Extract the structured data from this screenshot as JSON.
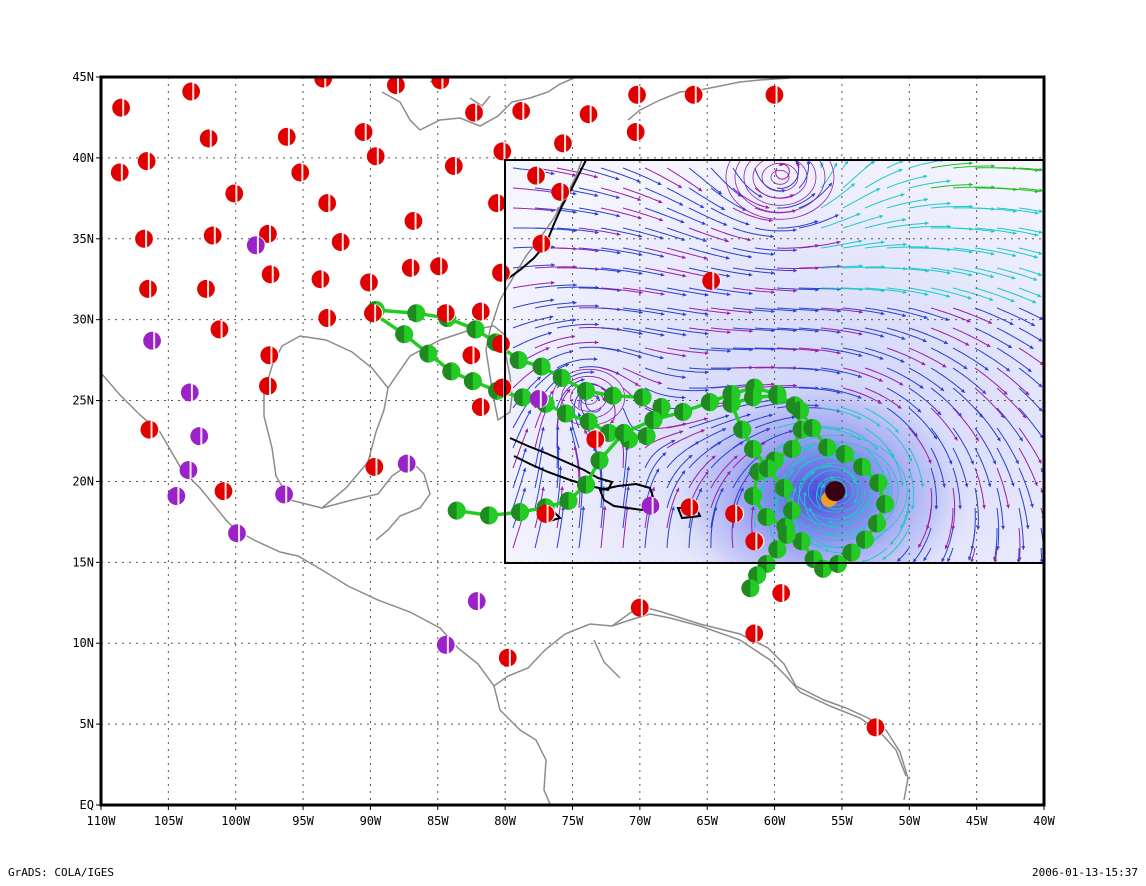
{
  "map": {
    "lon_ticks": [
      "110W",
      "105W",
      "100W",
      "95W",
      "90W",
      "85W",
      "80W",
      "75W",
      "70W",
      "65W",
      "60W",
      "55W",
      "50W",
      "45W",
      "40W"
    ],
    "lat_ticks": [
      "EQ",
      "5N",
      "10N",
      "15N",
      "20N",
      "25N",
      "30N",
      "35N",
      "40N",
      "45N"
    ],
    "lon_range": [
      -110,
      -40
    ],
    "lat_range": [
      0,
      45
    ],
    "inset_lon_range": [
      -80,
      -40
    ],
    "inset_lat_range": [
      15,
      40
    ],
    "grid": "dotted",
    "colors": {
      "frame": "#000000",
      "coast": "#8c8c8c",
      "grid": "#555555",
      "station_red": "#e10000",
      "station_purple": "#9a22c8",
      "track": "#22cc22",
      "track_marker": "#1f8a1f",
      "stream_blue": "#2a3fd0",
      "stream_purple": "#9a1ea8",
      "stream_cyan": "#1ec8c8",
      "stream_green": "#22bb22",
      "storm_shade": "#5b66e8",
      "eye_dark": "#3a0012",
      "eye_orange": "#f0a020"
    },
    "stations_red": [
      [
        -108.5,
        43.1
      ],
      [
        -103.3,
        44.1
      ],
      [
        -93.5,
        44.9
      ],
      [
        -88.1,
        44.5
      ],
      [
        -84.8,
        44.8
      ],
      [
        -82.3,
        42.8
      ],
      [
        -78.8,
        42.9
      ],
      [
        -73.8,
        42.7
      ],
      [
        -70.2,
        43.9
      ],
      [
        -66,
        43.9
      ],
      [
        -60,
        43.9
      ],
      [
        -102,
        41.2
      ],
      [
        -96.2,
        41.3
      ],
      [
        -90.5,
        41.6
      ],
      [
        -89.6,
        40.1
      ],
      [
        -83.8,
        39.5
      ],
      [
        -75.7,
        40.9
      ],
      [
        -70.3,
        41.6
      ],
      [
        -80.2,
        40.4
      ],
      [
        -108.6,
        39.1
      ],
      [
        -106.6,
        39.8
      ],
      [
        -100.1,
        37.8
      ],
      [
        -95.2,
        39.1
      ],
      [
        -93.2,
        37.2
      ],
      [
        -86.8,
        36.1
      ],
      [
        -80.6,
        37.2
      ],
      [
        -77.7,
        38.9
      ],
      [
        -75.9,
        37.9
      ],
      [
        -106.8,
        35.0
      ],
      [
        -101.7,
        35.2
      ],
      [
        -97.6,
        35.3
      ],
      [
        -92.2,
        34.8
      ],
      [
        -87,
        33.2
      ],
      [
        -84.9,
        33.3
      ],
      [
        -80.3,
        32.9
      ],
      [
        -77.3,
        34.7
      ],
      [
        -64.7,
        32.4
      ],
      [
        -106.5,
        31.9
      ],
      [
        -102.2,
        31.9
      ],
      [
        -97.4,
        32.8
      ],
      [
        -93.7,
        32.5
      ],
      [
        -90.1,
        32.3
      ],
      [
        -84.4,
        30.4
      ],
      [
        -81.8,
        30.5
      ],
      [
        -101.2,
        29.4
      ],
      [
        -93.2,
        30.1
      ],
      [
        -89.8,
        30.4
      ],
      [
        -97.5,
        27.8
      ],
      [
        -97.6,
        25.9
      ],
      [
        -82.5,
        27.8
      ],
      [
        -80.3,
        28.5
      ],
      [
        -80.2,
        25.8
      ],
      [
        -81.8,
        24.6
      ],
      [
        -106.4,
        23.2
      ],
      [
        -73.3,
        22.6
      ],
      [
        -100.9,
        19.4
      ],
      [
        -89.7,
        20.9
      ],
      [
        -77,
        18
      ],
      [
        -66.3,
        18.4
      ],
      [
        -63,
        18
      ],
      [
        -61.5,
        16.3
      ],
      [
        -59.5,
        13.1
      ],
      [
        -70,
        12.2
      ],
      [
        -61.5,
        10.6
      ],
      [
        -79.8,
        9.1
      ],
      [
        -52.5,
        4.8
      ]
    ],
    "stations_purple": [
      [
        -98.5,
        34.6
      ],
      [
        -106.2,
        28.7
      ],
      [
        -103.4,
        25.5
      ],
      [
        -102.7,
        22.8
      ],
      [
        -103.5,
        20.7
      ],
      [
        -104.4,
        19.1
      ],
      [
        -96.4,
        19.2
      ],
      [
        -87.3,
        21.1
      ],
      [
        -99.9,
        16.8
      ],
      [
        -82.1,
        12.6
      ],
      [
        -84.4,
        9.9
      ],
      [
        -77.5,
        25.1
      ],
      [
        -69.2,
        18.5
      ]
    ],
    "track": [
      [
        -89.8,
        30.4
      ],
      [
        -87.5,
        29.1
      ],
      [
        -85.7,
        27.9
      ],
      [
        -84,
        26.8
      ],
      [
        -82.4,
        26.2
      ],
      [
        -80.6,
        25.6
      ],
      [
        -78.7,
        25.2
      ],
      [
        -77,
        24.8
      ],
      [
        -75.5,
        24.2
      ],
      [
        -73.8,
        23.7
      ],
      [
        -72.3,
        23
      ],
      [
        -70.8,
        22.6
      ],
      [
        -69.5,
        22.8
      ],
      [
        -68.4,
        24.6
      ],
      [
        -69.8,
        25.2
      ],
      [
        -72,
        25.3
      ],
      [
        -74,
        25.6
      ],
      [
        -75.8,
        26.4
      ],
      [
        -77.3,
        27.1
      ],
      [
        -79,
        27.5
      ],
      [
        -80.7,
        28.6
      ],
      [
        -82.2,
        29.4
      ],
      [
        -84.3,
        30.1
      ],
      [
        -86.6,
        30.4
      ],
      [
        -89.6,
        30.6
      ],
      [
        -83.6,
        18.2
      ],
      [
        -81.2,
        17.9
      ],
      [
        -78.9,
        18.1
      ],
      [
        -77,
        18.4
      ],
      [
        -75.3,
        18.8
      ],
      [
        -74,
        19.8
      ],
      [
        -73,
        21.3
      ],
      [
        -71.2,
        23
      ],
      [
        -69,
        23.8
      ],
      [
        -66.8,
        24.3
      ],
      [
        -64.8,
        24.9
      ],
      [
        -63.2,
        25.4
      ],
      [
        -61.5,
        25.8
      ],
      [
        -59.8,
        25.4
      ],
      [
        -58.5,
        24.7
      ],
      [
        -58,
        23.2
      ],
      [
        -58.7,
        22
      ],
      [
        -60,
        21.3
      ],
      [
        -61.2,
        20.6
      ],
      [
        -61.6,
        19.1
      ],
      [
        -60.6,
        17.8
      ],
      [
        -59.2,
        17.2
      ],
      [
        -58,
        16.3
      ],
      [
        -57.1,
        15.2
      ],
      [
        -56.4,
        14.6
      ],
      [
        -55.3,
        14.9
      ],
      [
        -54.3,
        15.6
      ],
      [
        -53.3,
        16.4
      ],
      [
        -52.4,
        17.4
      ],
      [
        -51.8,
        18.6
      ],
      [
        -52.3,
        19.9
      ],
      [
        -53.5,
        20.9
      ],
      [
        -54.8,
        21.7
      ],
      [
        -56.1,
        22.1
      ],
      [
        -57.2,
        23.3
      ],
      [
        -58.1,
        24.4
      ],
      [
        -59.8,
        25.3
      ],
      [
        -61.6,
        25.2
      ],
      [
        -63.2,
        24.8
      ],
      [
        -62.4,
        23.2
      ],
      [
        -61.6,
        22.0
      ],
      [
        -60.5,
        20.8
      ],
      [
        -59.3,
        19.6
      ],
      [
        -58.7,
        18.2
      ],
      [
        -59.1,
        16.7
      ],
      [
        -59.8,
        15.8
      ],
      [
        -60.6,
        14.9
      ],
      [
        -61.3,
        14.2
      ],
      [
        -61.8,
        13.4
      ]
    ],
    "storm_center": [
      -55.5,
      19.4
    ],
    "circulation_centers": [
      [
        -59.6,
        38.8
      ],
      [
        -73.8,
        25.2
      ]
    ]
  },
  "footer": {
    "left": "GrADS: COLA/IGES",
    "right": "2006-01-13-15:37"
  }
}
